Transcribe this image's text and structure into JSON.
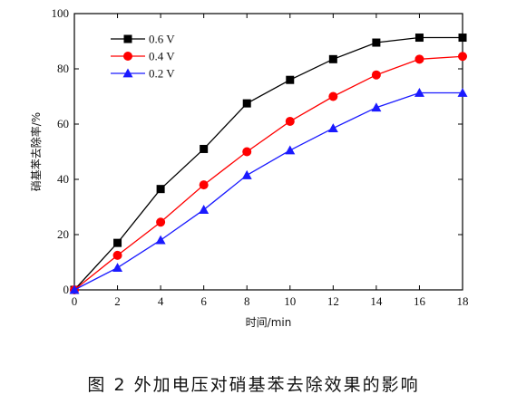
{
  "caption": "图 2   外加电压对硝基苯去除效果的影响",
  "chart_data": {
    "type": "line",
    "title": "",
    "xlabel": "时间/min",
    "ylabel": "硝基苯去除率/%",
    "xlim": [
      0,
      18
    ],
    "ylim": [
      0,
      100
    ],
    "xticks": [
      0,
      2,
      4,
      6,
      8,
      10,
      12,
      14,
      16,
      18
    ],
    "yticks": [
      0,
      20,
      40,
      60,
      80,
      100
    ],
    "grid": false,
    "legend_position": "top-left",
    "series": [
      {
        "name": "0.6 V",
        "color": "#000000",
        "marker": "square",
        "x": [
          0,
          2,
          4,
          6,
          8,
          10,
          12,
          14,
          16,
          18
        ],
        "y": [
          0,
          17,
          36.5,
          51,
          67.5,
          76,
          83.5,
          89.5,
          91.3,
          91.3
        ]
      },
      {
        "name": "0.4 V",
        "color": "#ff0000",
        "marker": "circle",
        "x": [
          0,
          2,
          4,
          6,
          8,
          10,
          12,
          14,
          16,
          18
        ],
        "y": [
          0,
          12.5,
          24.5,
          38,
          50,
          61,
          70,
          77.8,
          83.5,
          84.5
        ]
      },
      {
        "name": "0.2 V",
        "color": "#1a1aff",
        "marker": "triangle",
        "x": [
          0,
          2,
          4,
          6,
          8,
          10,
          12,
          14,
          16,
          18
        ],
        "y": [
          0,
          8,
          18,
          29,
          41.5,
          50.5,
          58.5,
          66,
          71.3,
          71.3
        ]
      }
    ]
  }
}
